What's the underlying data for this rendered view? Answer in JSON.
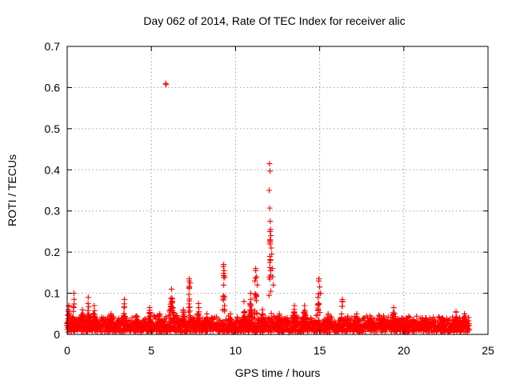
{
  "chart_data": {
    "type": "scatter",
    "title": "Day 062 of 2014, Rate Of TEC Index for receiver alic",
    "xlabel": "GPS time / hours",
    "ylabel": "ROTI / TECUs",
    "xlim": [
      0,
      25
    ],
    "ylim": [
      0,
      0.7
    ],
    "xticks": [
      0,
      5,
      10,
      15,
      20,
      25
    ],
    "yticks": [
      0,
      0.1,
      0.2,
      0.3,
      0.4,
      0.5,
      0.6,
      0.7
    ],
    "xtick_labels": [
      "0",
      "5",
      "10",
      "15",
      "20",
      "25"
    ],
    "ytick_labels": [
      "0",
      "0.1",
      "0.2",
      "0.3",
      "0.4",
      "0.5",
      "0.6",
      "0.7"
    ],
    "grid": true,
    "marker": "+",
    "color": "#ff0000",
    "x_range_covered": [
      0,
      23.9
    ],
    "background_band": [
      0.005,
      0.04
    ],
    "bursts": [
      {
        "x": 0.1,
        "width": 0.25,
        "peak": 0.07
      },
      {
        "x": 0.4,
        "width": 0.12,
        "peak": 0.1
      },
      {
        "x": 0.9,
        "width": 0.35,
        "peak": 0.06
      },
      {
        "x": 1.25,
        "width": 0.12,
        "peak": 0.09
      },
      {
        "x": 1.6,
        "width": 0.3,
        "peak": 0.07
      },
      {
        "x": 2.6,
        "width": 0.3,
        "peak": 0.05
      },
      {
        "x": 3.4,
        "width": 0.15,
        "peak": 0.085
      },
      {
        "x": 4.1,
        "width": 0.25,
        "peak": 0.045
      },
      {
        "x": 4.9,
        "width": 0.25,
        "peak": 0.065
      },
      {
        "x": 5.5,
        "width": 0.2,
        "peak": 0.05
      },
      {
        "x": 6.2,
        "width": 0.35,
        "peak": 0.11
      },
      {
        "x": 6.9,
        "width": 0.3,
        "peak": 0.06
      },
      {
        "x": 7.25,
        "width": 0.1,
        "peak": 0.135
      },
      {
        "x": 7.8,
        "width": 0.25,
        "peak": 0.075
      },
      {
        "x": 8.3,
        "width": 0.25,
        "peak": 0.05
      },
      {
        "x": 9.3,
        "width": 0.12,
        "peak": 0.17
      },
      {
        "x": 9.7,
        "width": 0.2,
        "peak": 0.05
      },
      {
        "x": 10.5,
        "width": 0.25,
        "peak": 0.08
      },
      {
        "x": 10.9,
        "width": 0.25,
        "peak": 0.1
      },
      {
        "x": 11.2,
        "width": 0.15,
        "peak": 0.16
      },
      {
        "x": 11.6,
        "width": 0.2,
        "peak": 0.06
      },
      {
        "x": 12.05,
        "width": 0.15,
        "peak": 0.25
      },
      {
        "x": 12.6,
        "width": 0.25,
        "peak": 0.05
      },
      {
        "x": 13.5,
        "width": 0.3,
        "peak": 0.07
      },
      {
        "x": 14.1,
        "width": 0.3,
        "peak": 0.07
      },
      {
        "x": 14.95,
        "width": 0.15,
        "peak": 0.135
      },
      {
        "x": 15.5,
        "width": 0.3,
        "peak": 0.05
      },
      {
        "x": 16.35,
        "width": 0.2,
        "peak": 0.085
      },
      {
        "x": 17.2,
        "width": 0.3,
        "peak": 0.05
      },
      {
        "x": 18.0,
        "width": 0.3,
        "peak": 0.045
      },
      {
        "x": 18.8,
        "width": 0.3,
        "peak": 0.045
      },
      {
        "x": 19.4,
        "width": 0.3,
        "peak": 0.065
      },
      {
        "x": 20.2,
        "width": 0.25,
        "peak": 0.04
      },
      {
        "x": 21.3,
        "width": 0.3,
        "peak": 0.04
      },
      {
        "x": 22.3,
        "width": 0.3,
        "peak": 0.04
      },
      {
        "x": 23.1,
        "width": 0.3,
        "peak": 0.055
      },
      {
        "x": 23.6,
        "width": 0.2,
        "peak": 0.05
      }
    ],
    "outliers": [
      {
        "x": 5.85,
        "y": 0.61
      },
      {
        "x": 5.88,
        "y": 0.607
      },
      {
        "x": 12.02,
        "y": 0.415
      },
      {
        "x": 12.05,
        "y": 0.397
      },
      {
        "x": 12.0,
        "y": 0.35
      },
      {
        "x": 12.03,
        "y": 0.307
      },
      {
        "x": 12.06,
        "y": 0.275
      },
      {
        "x": 12.08,
        "y": 0.255
      },
      {
        "x": 12.1,
        "y": 0.24
      },
      {
        "x": 12.04,
        "y": 0.23
      },
      {
        "x": 12.12,
        "y": 0.21
      },
      {
        "x": 12.15,
        "y": 0.195
      },
      {
        "x": 12.07,
        "y": 0.18
      },
      {
        "x": 12.18,
        "y": 0.16
      },
      {
        "x": 12.2,
        "y": 0.14
      },
      {
        "x": 12.25,
        "y": 0.12
      },
      {
        "x": 11.2,
        "y": 0.155
      },
      {
        "x": 11.25,
        "y": 0.14
      },
      {
        "x": 11.3,
        "y": 0.12
      },
      {
        "x": 11.15,
        "y": 0.13
      },
      {
        "x": 9.28,
        "y": 0.165
      },
      {
        "x": 9.32,
        "y": 0.155
      },
      {
        "x": 9.35,
        "y": 0.14
      },
      {
        "x": 9.3,
        "y": 0.12
      },
      {
        "x": 14.95,
        "y": 0.13
      },
      {
        "x": 15.0,
        "y": 0.115
      },
      {
        "x": 15.05,
        "y": 0.1
      },
      {
        "x": 14.9,
        "y": 0.09
      },
      {
        "x": 7.25,
        "y": 0.13
      },
      {
        "x": 7.3,
        "y": 0.125
      }
    ]
  }
}
